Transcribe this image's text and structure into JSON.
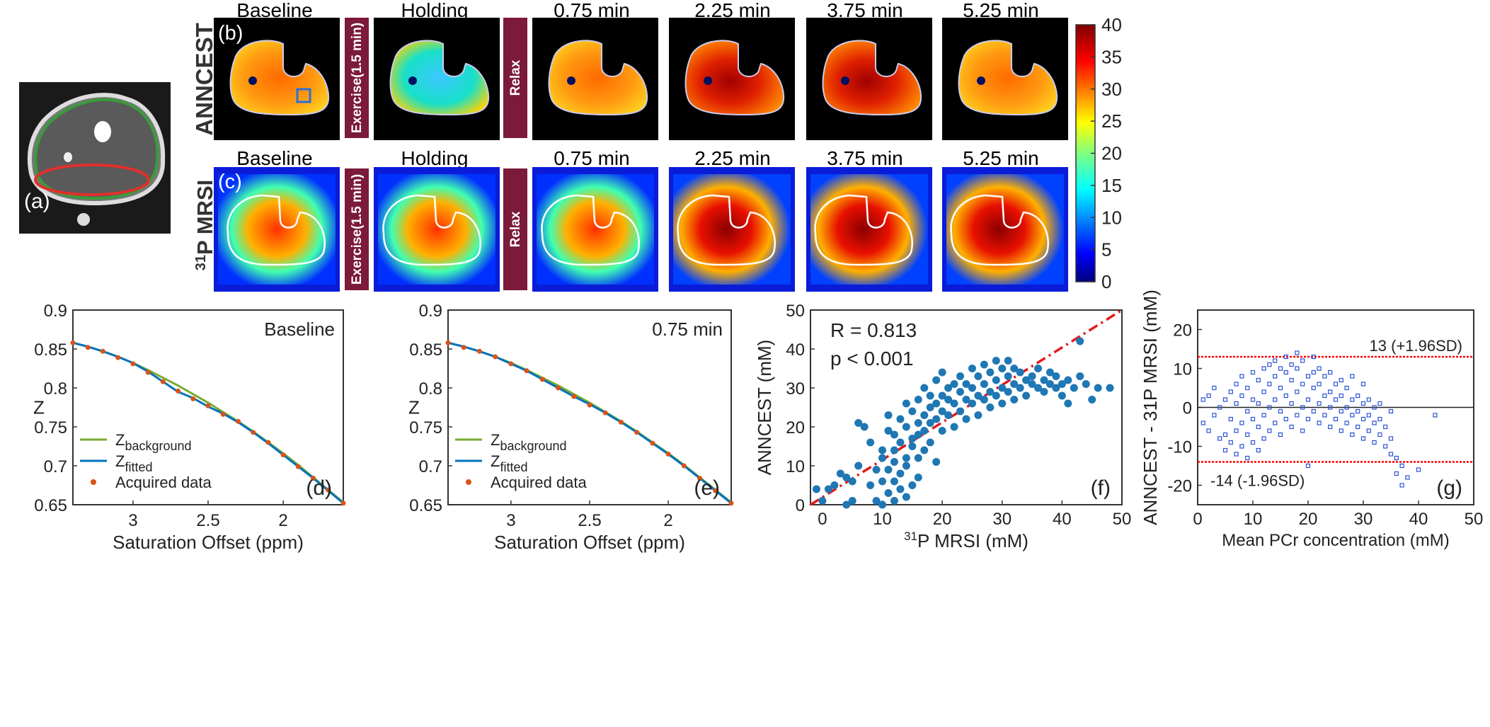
{
  "panels": {
    "a": {
      "label": "(a)"
    },
    "b": {
      "label": "(b)",
      "row_label": "ANNCEST"
    },
    "c": {
      "label": "(c)",
      "row_label_sup": "31",
      "row_label_main": "P MRSI"
    },
    "d": {
      "label": "(d)"
    },
    "e": {
      "label": "(e)"
    },
    "f": {
      "label": "(f)"
    },
    "g": {
      "label": "(g)"
    }
  },
  "timepoints": [
    "Baseline",
    "Holding",
    "0.75 min",
    "2.25 min",
    "3.75 min",
    "5.25 min"
  ],
  "bars": {
    "exercise": "Exercise(1.5 min)",
    "relax": "Relax"
  },
  "colorbar": {
    "ticks": [
      "40",
      "35",
      "30",
      "25",
      "20",
      "15",
      "10",
      "5",
      "0"
    ],
    "colormap": "jet",
    "range": [
      0,
      40
    ]
  },
  "colors": {
    "bar": "#7b1a3a",
    "fit_green": "#77ac30",
    "fit_blue": "#0072bd",
    "points_orange": "#d95319",
    "scatter_blue": "#1f77b4",
    "identity_line": "#e41a1c",
    "limit_red": "#ff0000",
    "ba_points": "#2b50d6"
  },
  "chart_data": [
    {
      "id": "d",
      "type": "line",
      "annotation": "Baseline",
      "xlabel": "Saturation Offset (ppm)",
      "ylabel": "Z",
      "xlim": [
        3.4,
        1.6
      ],
      "xreversed": true,
      "ylim": [
        0.65,
        0.9
      ],
      "xticks": [
        "3",
        "2.5",
        "2"
      ],
      "yticks": [
        "0.9",
        "0.85",
        "0.8",
        "0.75",
        "0.7",
        "0.65"
      ],
      "legend": {
        "placement": "bottom-left",
        "entries": [
          {
            "main": "Z",
            "sub": "background"
          },
          {
            "main": "Z",
            "sub": "fitted"
          },
          {
            "main": "Acquired data",
            "sub": ""
          }
        ]
      },
      "x": [
        3.4,
        3.3,
        3.2,
        3.1,
        3.0,
        2.9,
        2.8,
        2.7,
        2.6,
        2.5,
        2.4,
        2.3,
        2.2,
        2.1,
        2.0,
        1.9,
        1.8,
        1.7,
        1.6
      ],
      "series": [
        {
          "name": "background",
          "values": [
            0.858,
            0.853,
            0.847,
            0.84,
            0.832,
            0.823,
            0.813,
            0.803,
            0.792,
            0.781,
            0.769,
            0.757,
            0.744,
            0.73,
            0.716,
            0.701,
            0.685,
            0.669,
            0.653
          ]
        },
        {
          "name": "fitted",
          "values": [
            0.858,
            0.853,
            0.847,
            0.84,
            0.832,
            0.821,
            0.808,
            0.795,
            0.787,
            0.776,
            0.767,
            0.756,
            0.743,
            0.729,
            0.714,
            0.699,
            0.684,
            0.668,
            0.652
          ]
        },
        {
          "name": "acquired",
          "values": [
            0.858,
            0.852,
            0.847,
            0.839,
            0.831,
            0.82,
            0.808,
            0.796,
            0.786,
            0.777,
            0.766,
            0.757,
            0.743,
            0.73,
            0.714,
            0.699,
            0.684,
            0.669,
            0.652
          ]
        }
      ]
    },
    {
      "id": "e",
      "type": "line",
      "annotation": "0.75 min",
      "xlabel": "Saturation Offset (ppm)",
      "ylabel": "Z",
      "xlim": [
        3.4,
        1.6
      ],
      "xreversed": true,
      "ylim": [
        0.65,
        0.9
      ],
      "xticks": [
        "3",
        "2.5",
        "2"
      ],
      "yticks": [
        "0.9",
        "0.85",
        "0.8",
        "0.75",
        "0.7",
        "0.65"
      ],
      "legend": {
        "placement": "bottom-left",
        "entries": [
          {
            "main": "Z",
            "sub": "background"
          },
          {
            "main": "Z",
            "sub": "fitted"
          },
          {
            "main": "Acquired data",
            "sub": ""
          }
        ]
      },
      "x": [
        3.4,
        3.3,
        3.2,
        3.1,
        3.0,
        2.9,
        2.8,
        2.7,
        2.6,
        2.5,
        2.4,
        2.3,
        2.2,
        2.1,
        2.0,
        1.9,
        1.8,
        1.7,
        1.6
      ],
      "series": [
        {
          "name": "background",
          "values": [
            0.858,
            0.853,
            0.847,
            0.84,
            0.832,
            0.823,
            0.813,
            0.803,
            0.792,
            0.781,
            0.769,
            0.757,
            0.744,
            0.73,
            0.716,
            0.701,
            0.685,
            0.669,
            0.653
          ]
        },
        {
          "name": "fitted",
          "values": [
            0.858,
            0.853,
            0.847,
            0.84,
            0.831,
            0.822,
            0.811,
            0.8,
            0.789,
            0.779,
            0.768,
            0.756,
            0.743,
            0.729,
            0.715,
            0.7,
            0.684,
            0.668,
            0.652
          ]
        },
        {
          "name": "acquired",
          "values": [
            0.858,
            0.852,
            0.847,
            0.84,
            0.831,
            0.822,
            0.811,
            0.8,
            0.789,
            0.778,
            0.768,
            0.756,
            0.743,
            0.729,
            0.715,
            0.7,
            0.684,
            0.668,
            0.652
          ]
        }
      ]
    },
    {
      "id": "f",
      "type": "scatter",
      "stats": [
        "R = 0.813",
        "p < 0.001"
      ],
      "xlabel_sup": "31",
      "xlabel_main": "P MRSI (mM)",
      "ylabel": "ANNCEST (mM)",
      "xlim": [
        -2,
        50
      ],
      "ylim": [
        0,
        50
      ],
      "xticks": [
        "0",
        "10",
        "20",
        "30",
        "40",
        "50"
      ],
      "yticks": [
        "0",
        "10",
        "20",
        "30",
        "40",
        "50"
      ],
      "identity_line": true,
      "points": [
        [
          -1,
          4
        ],
        [
          0,
          1
        ],
        [
          1,
          4
        ],
        [
          2,
          5
        ],
        [
          3,
          8
        ],
        [
          4,
          7
        ],
        [
          4,
          0
        ],
        [
          5,
          6
        ],
        [
          5,
          1
        ],
        [
          6,
          10
        ],
        [
          6,
          21
        ],
        [
          7,
          20
        ],
        [
          8,
          16
        ],
        [
          8,
          5
        ],
        [
          9,
          9
        ],
        [
          9,
          1
        ],
        [
          10,
          6
        ],
        [
          10,
          0
        ],
        [
          10,
          12
        ],
        [
          10,
          14
        ],
        [
          11,
          3
        ],
        [
          11,
          9
        ],
        [
          11,
          23
        ],
        [
          11,
          19
        ],
        [
          12,
          1
        ],
        [
          12,
          6
        ],
        [
          12,
          11
        ],
        [
          12,
          14
        ],
        [
          12,
          18
        ],
        [
          13,
          4
        ],
        [
          13,
          8
        ],
        [
          13,
          22
        ],
        [
          13,
          16
        ],
        [
          14,
          2
        ],
        [
          14,
          12
        ],
        [
          14,
          20
        ],
        [
          14,
          26
        ],
        [
          14,
          10
        ],
        [
          15,
          15
        ],
        [
          15,
          24
        ],
        [
          15,
          17
        ],
        [
          15,
          5
        ],
        [
          16,
          27
        ],
        [
          16,
          18
        ],
        [
          16,
          21
        ],
        [
          16,
          12
        ],
        [
          16,
          7
        ],
        [
          17,
          14
        ],
        [
          17,
          23
        ],
        [
          17,
          30
        ],
        [
          17,
          19
        ],
        [
          18,
          25
        ],
        [
          18,
          16
        ],
        [
          18,
          21
        ],
        [
          18,
          28
        ],
        [
          19,
          26
        ],
        [
          19,
          22
        ],
        [
          19,
          11
        ],
        [
          19,
          32
        ],
        [
          20,
          24
        ],
        [
          20,
          28
        ],
        [
          20,
          19
        ],
        [
          20,
          34
        ],
        [
          21,
          27
        ],
        [
          21,
          23
        ],
        [
          21,
          30
        ],
        [
          22,
          26
        ],
        [
          22,
          20
        ],
        [
          22,
          31
        ],
        [
          23,
          29
        ],
        [
          23,
          24
        ],
        [
          23,
          33
        ],
        [
          24,
          27
        ],
        [
          24,
          22
        ],
        [
          24,
          31
        ],
        [
          25,
          30
        ],
        [
          25,
          26
        ],
        [
          25,
          35
        ],
        [
          26,
          28
        ],
        [
          26,
          23
        ],
        [
          26,
          33
        ],
        [
          27,
          31
        ],
        [
          27,
          27
        ],
        [
          27,
          36
        ],
        [
          28,
          29
        ],
        [
          28,
          34
        ],
        [
          28,
          25
        ],
        [
          29,
          32
        ],
        [
          29,
          28
        ],
        [
          29,
          37
        ],
        [
          30,
          30
        ],
        [
          30,
          35
        ],
        [
          30,
          26
        ],
        [
          31,
          33
        ],
        [
          31,
          29
        ],
        [
          31,
          37
        ],
        [
          32,
          31
        ],
        [
          32,
          35
        ],
        [
          32,
          27
        ],
        [
          33,
          34
        ],
        [
          33,
          30
        ],
        [
          34,
          32
        ],
        [
          34,
          28
        ],
        [
          35,
          33
        ],
        [
          35,
          31
        ],
        [
          36,
          30
        ],
        [
          36,
          35
        ],
        [
          37,
          32
        ],
        [
          37,
          29
        ],
        [
          38,
          31
        ],
        [
          38,
          34
        ],
        [
          39,
          30
        ],
        [
          39,
          33
        ],
        [
          40,
          31
        ],
        [
          40,
          28
        ],
        [
          41,
          32
        ],
        [
          41,
          26
        ],
        [
          42,
          30
        ],
        [
          43,
          42
        ],
        [
          43,
          33
        ],
        [
          44,
          31
        ],
        [
          45,
          27
        ],
        [
          46,
          30
        ],
        [
          48,
          30
        ]
      ]
    },
    {
      "id": "g",
      "type": "scatter",
      "subtype": "bland-altman",
      "xlabel": "Mean PCr concentration (mM)",
      "ylabel_part1": "ANNCEST - 31",
      "ylabel_part2": "P MRSI (mM)",
      "xlim": [
        0,
        50
      ],
      "ylim": [
        -25,
        25
      ],
      "xticks": [
        "0",
        "10",
        "20",
        "30",
        "40",
        "50"
      ],
      "yticks": [
        "20",
        "10",
        "0",
        "-10",
        "-20"
      ],
      "mean_line": 0,
      "upper_limit": {
        "value": 13,
        "label": "13 (+1.96SD)"
      },
      "lower_limit": {
        "value": -14,
        "label": "-14 (-1.96SD)"
      },
      "points": [
        [
          1,
          -4
        ],
        [
          1,
          2
        ],
        [
          2,
          -6
        ],
        [
          2,
          3
        ],
        [
          3,
          -2
        ],
        [
          3,
          5
        ],
        [
          4,
          -8
        ],
        [
          4,
          0
        ],
        [
          5,
          -11
        ],
        [
          5,
          -7
        ],
        [
          5,
          2
        ],
        [
          6,
          -9
        ],
        [
          6,
          -3
        ],
        [
          6,
          4
        ],
        [
          7,
          -12
        ],
        [
          7,
          -6
        ],
        [
          7,
          1
        ],
        [
          7,
          6
        ],
        [
          8,
          -10
        ],
        [
          8,
          -4
        ],
        [
          8,
          3
        ],
        [
          8,
          8
        ],
        [
          9,
          -13
        ],
        [
          9,
          -7
        ],
        [
          9,
          -1
        ],
        [
          9,
          5
        ],
        [
          10,
          -9
        ],
        [
          10,
          -3
        ],
        [
          10,
          2
        ],
        [
          10,
          9
        ],
        [
          11,
          -11
        ],
        [
          11,
          -5
        ],
        [
          11,
          1
        ],
        [
          11,
          7
        ],
        [
          12,
          -8
        ],
        [
          12,
          -2
        ],
        [
          12,
          4
        ],
        [
          12,
          10
        ],
        [
          13,
          -6
        ],
        [
          13,
          0
        ],
        [
          13,
          6
        ],
        [
          13,
          11
        ],
        [
          14,
          -4
        ],
        [
          14,
          2
        ],
        [
          14,
          8
        ],
        [
          14,
          12
        ],
        [
          15,
          -7
        ],
        [
          15,
          -1
        ],
        [
          15,
          5
        ],
        [
          15,
          10
        ],
        [
          16,
          -3
        ],
        [
          16,
          3
        ],
        [
          16,
          9
        ],
        [
          16,
          13
        ],
        [
          17,
          -5
        ],
        [
          17,
          1
        ],
        [
          17,
          7
        ],
        [
          17,
          11
        ],
        [
          18,
          -2
        ],
        [
          18,
          4
        ],
        [
          18,
          10
        ],
        [
          18,
          14
        ],
        [
          19,
          -6
        ],
        [
          19,
          0
        ],
        [
          19,
          6
        ],
        [
          19,
          12
        ],
        [
          20,
          -3
        ],
        [
          20,
          2
        ],
        [
          20,
          8
        ],
        [
          20,
          -15
        ],
        [
          21,
          -1
        ],
        [
          21,
          5
        ],
        [
          21,
          9
        ],
        [
          21,
          13
        ],
        [
          22,
          -4
        ],
        [
          22,
          1
        ],
        [
          22,
          6
        ],
        [
          22,
          10
        ],
        [
          23,
          -2
        ],
        [
          23,
          3
        ],
        [
          23,
          8
        ],
        [
          24,
          -5
        ],
        [
          24,
          0
        ],
        [
          24,
          4
        ],
        [
          24,
          9
        ],
        [
          25,
          -3
        ],
        [
          25,
          2
        ],
        [
          25,
          6
        ],
        [
          26,
          -6
        ],
        [
          26,
          -1
        ],
        [
          26,
          3
        ],
        [
          26,
          7
        ],
        [
          27,
          -4
        ],
        [
          27,
          0
        ],
        [
          27,
          5
        ],
        [
          28,
          -7
        ],
        [
          28,
          -2
        ],
        [
          28,
          2
        ],
        [
          28,
          8
        ],
        [
          29,
          -5
        ],
        [
          29,
          -1
        ],
        [
          29,
          3
        ],
        [
          30,
          -8
        ],
        [
          30,
          -3
        ],
        [
          30,
          1
        ],
        [
          30,
          6
        ],
        [
          31,
          -6
        ],
        [
          31,
          -2
        ],
        [
          31,
          2
        ],
        [
          32,
          -9
        ],
        [
          32,
          -4
        ],
        [
          32,
          0
        ],
        [
          33,
          -7
        ],
        [
          33,
          -3
        ],
        [
          33,
          1
        ],
        [
          34,
          -10
        ],
        [
          34,
          -5
        ],
        [
          35,
          -12
        ],
        [
          35,
          -8
        ],
        [
          35,
          -1
        ],
        [
          36,
          -17
        ],
        [
          36,
          -13
        ],
        [
          37,
          -20
        ],
        [
          37,
          -15
        ],
        [
          38,
          -18
        ],
        [
          40,
          -16
        ],
        [
          43,
          -2
        ]
      ]
    }
  ]
}
